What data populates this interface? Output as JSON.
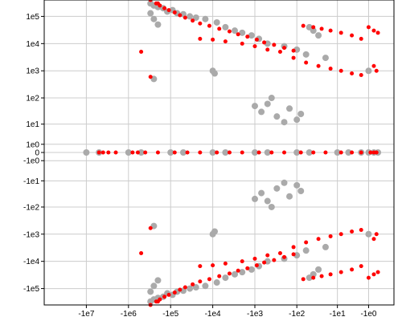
{
  "chart_data": {
    "type": "scatter",
    "title": "",
    "xlabel": "",
    "ylabel": "",
    "grid": true,
    "x_scale": "symlog",
    "y_scale": "symlog",
    "x_ticks": [
      {
        "value": -10000000,
        "label": "-1e7"
      },
      {
        "value": -1000000,
        "label": "-1e6"
      },
      {
        "value": -100000,
        "label": "-1e5"
      },
      {
        "value": -10000,
        "label": "-1e4"
      },
      {
        "value": -1000,
        "label": "-1e3"
      },
      {
        "value": -100,
        "label": "-1e2"
      },
      {
        "value": -10,
        "label": "-1e1"
      },
      {
        "value": -1,
        "label": "-1e0"
      }
    ],
    "y_ticks": [
      {
        "value": 100000,
        "label": "1e5"
      },
      {
        "value": 10000,
        "label": "1e4"
      },
      {
        "value": 1000,
        "label": "1e3"
      },
      {
        "value": 100,
        "label": "1e2"
      },
      {
        "value": 10,
        "label": "1e1"
      },
      {
        "value": 1,
        "label": "1e0"
      },
      {
        "value": 0,
        "label": "0"
      },
      {
        "value": -1,
        "label": "-1e0"
      },
      {
        "value": -10,
        "label": "-1e1"
      },
      {
        "value": -100,
        "label": "-1e2"
      },
      {
        "value": -1000,
        "label": "-1e3"
      },
      {
        "value": -10000,
        "label": "-1e4"
      },
      {
        "value": -100000,
        "label": "-1e5"
      }
    ],
    "xlim": [
      -100000000,
      1
    ],
    "ylim": [
      -400000,
      400000
    ],
    "series": [
      {
        "color": "#aaaaaa",
        "points": [
          [
            -300000,
            300000
          ],
          [
            -250000,
            250000
          ],
          [
            -200000,
            220000
          ],
          [
            -150000,
            200000
          ],
          [
            -120000,
            150000
          ],
          [
            -90000,
            170000
          ],
          [
            -70000,
            130000
          ],
          [
            -50000,
            120000
          ],
          [
            -35000,
            100000
          ],
          [
            -25000,
            90000
          ],
          [
            -15000,
            80000
          ],
          [
            -8000,
            60000
          ],
          [
            -5000,
            40000
          ],
          [
            -3000,
            30000
          ],
          [
            -2000,
            25000
          ],
          [
            -1200,
            20000
          ],
          [
            -800,
            15000
          ],
          [
            -500,
            10000
          ],
          [
            -200,
            8000
          ],
          [
            -100,
            6000
          ],
          [
            -60,
            4000
          ],
          [
            -40,
            30000
          ],
          [
            -30,
            20000
          ],
          [
            -20,
            3000
          ],
          [
            -50,
            40000
          ],
          [
            -300000,
            130000
          ],
          [
            -250000,
            80000
          ],
          [
            -200000,
            50000
          ],
          [
            -10000,
            1000
          ],
          [
            -9000,
            800
          ],
          [
            -250000,
            500
          ],
          [
            -1000,
            50
          ],
          [
            -500,
            60
          ],
          [
            -700,
            30
          ],
          [
            -300,
            20
          ],
          [
            -200,
            12
          ],
          [
            -150,
            40
          ],
          [
            -80,
            25
          ],
          [
            -100,
            15
          ],
          [
            -400,
            100
          ],
          [
            -10000000,
            0
          ],
          [
            -5000000,
            0
          ],
          [
            -1000000,
            0
          ],
          [
            -500000,
            0
          ],
          [
            -100000,
            0
          ],
          [
            -50000,
            0
          ],
          [
            -10000,
            0
          ],
          [
            -5000,
            0
          ],
          [
            -1000,
            0
          ],
          [
            -500,
            0
          ],
          [
            -100,
            0
          ],
          [
            -50,
            0
          ],
          [
            -10,
            0
          ],
          [
            -5,
            0
          ],
          [
            -2,
            0
          ],
          [
            -1,
            0
          ],
          [
            -0.5,
            0
          ],
          [
            -0.2,
            0
          ],
          [
            -300000,
            -300000
          ],
          [
            -250000,
            -250000
          ],
          [
            -200000,
            -220000
          ],
          [
            -150000,
            -200000
          ],
          [
            -120000,
            -150000
          ],
          [
            -90000,
            -170000
          ],
          [
            -70000,
            -130000
          ],
          [
            -50000,
            -120000
          ],
          [
            -35000,
            -100000
          ],
          [
            -25000,
            -90000
          ],
          [
            -15000,
            -80000
          ],
          [
            -8000,
            -60000
          ],
          [
            -5000,
            -40000
          ],
          [
            -3000,
            -30000
          ],
          [
            -2000,
            -25000
          ],
          [
            -1200,
            -20000
          ],
          [
            -800,
            -15000
          ],
          [
            -500,
            -10000
          ],
          [
            -200,
            -8000
          ],
          [
            -100,
            -6000
          ],
          [
            -60,
            -4000
          ],
          [
            -40,
            -30000
          ],
          [
            -30,
            -20000
          ],
          [
            -20,
            -3000
          ],
          [
            -50,
            -40000
          ],
          [
            -300000,
            -130000
          ],
          [
            -250000,
            -80000
          ],
          [
            -200000,
            -50000
          ],
          [
            -10000,
            -1000
          ],
          [
            -9000,
            -800
          ],
          [
            -250000,
            -500
          ],
          [
            -1000,
            -50
          ],
          [
            -500,
            -60
          ],
          [
            -700,
            -30
          ],
          [
            -300,
            -20
          ],
          [
            -200,
            -12
          ],
          [
            -150,
            -40
          ],
          [
            -80,
            -25
          ],
          [
            -100,
            -15
          ],
          [
            -400,
            -100
          ],
          [
            -1,
            -1000
          ],
          [
            -1,
            1000
          ]
        ]
      },
      {
        "color": "#ff0000",
        "points": [
          [
            -300000,
            400000
          ],
          [
            -220000,
            300000
          ],
          [
            -180000,
            250000
          ],
          [
            -140000,
            200000
          ],
          [
            -110000,
            170000
          ],
          [
            -80000,
            140000
          ],
          [
            -60000,
            110000
          ],
          [
            -45000,
            90000
          ],
          [
            -30000,
            70000
          ],
          [
            -20000,
            55000
          ],
          [
            -12000,
            45000
          ],
          [
            -7000,
            35000
          ],
          [
            -4000,
            28000
          ],
          [
            -2500,
            22000
          ],
          [
            -1500,
            18000
          ],
          [
            -900,
            14000
          ],
          [
            -600,
            11000
          ],
          [
            -350,
            9000
          ],
          [
            -200,
            7000
          ],
          [
            -120,
            5500
          ],
          [
            -70,
            45000
          ],
          [
            -40,
            40000
          ],
          [
            -25,
            35000
          ],
          [
            -15,
            30000
          ],
          [
            -8,
            25000
          ],
          [
            -4,
            20000
          ],
          [
            -2,
            15000
          ],
          [
            -1,
            40000
          ],
          [
            -0.5,
            30000
          ],
          [
            -0.2,
            25000
          ],
          [
            -20000,
            15000
          ],
          [
            -10000,
            14000
          ],
          [
            -5000,
            12000
          ],
          [
            -2000,
            10000
          ],
          [
            -1000,
            8000
          ],
          [
            -500,
            6000
          ],
          [
            -250,
            5000
          ],
          [
            -120,
            3000
          ],
          [
            -60,
            2000
          ],
          [
            -30,
            1500
          ],
          [
            -15,
            1200
          ],
          [
            -8,
            1000
          ],
          [
            -4,
            800
          ],
          [
            -2,
            700
          ],
          [
            -0.5,
            1500
          ],
          [
            -0.3,
            1000
          ],
          [
            -500000,
            5000
          ],
          [
            -300000,
            600
          ],
          [
            -200000,
            300000
          ],
          [
            -5000000,
            0
          ],
          [
            -4000000,
            0
          ],
          [
            -3000000,
            0
          ],
          [
            -2000000,
            0
          ],
          [
            -800000,
            0
          ],
          [
            -600000,
            0
          ],
          [
            -400000,
            0
          ],
          [
            -200000,
            0
          ],
          [
            -80000,
            0
          ],
          [
            -40000,
            0
          ],
          [
            -20000,
            0
          ],
          [
            -8000,
            0
          ],
          [
            -4000,
            0
          ],
          [
            -2000,
            0
          ],
          [
            -800,
            0
          ],
          [
            -400,
            0
          ],
          [
            -200,
            0
          ],
          [
            -80,
            0
          ],
          [
            -40,
            0
          ],
          [
            -20,
            0
          ],
          [
            -8,
            0
          ],
          [
            -4,
            0
          ],
          [
            -2,
            0
          ],
          [
            -0.8,
            0
          ],
          [
            -0.5,
            0
          ],
          [
            -0.3,
            0
          ],
          [
            -300000,
            -400000
          ],
          [
            -220000,
            -300000
          ],
          [
            -180000,
            -250000
          ],
          [
            -140000,
            -200000
          ],
          [
            -110000,
            -170000
          ],
          [
            -80000,
            -140000
          ],
          [
            -60000,
            -110000
          ],
          [
            -45000,
            -90000
          ],
          [
            -30000,
            -70000
          ],
          [
            -20000,
            -55000
          ],
          [
            -12000,
            -45000
          ],
          [
            -7000,
            -35000
          ],
          [
            -4000,
            -28000
          ],
          [
            -2500,
            -22000
          ],
          [
            -1500,
            -18000
          ],
          [
            -900,
            -14000
          ],
          [
            -600,
            -11000
          ],
          [
            -350,
            -9000
          ],
          [
            -200,
            -7000
          ],
          [
            -120,
            -5500
          ],
          [
            -70,
            -45000
          ],
          [
            -40,
            -40000
          ],
          [
            -25,
            -35000
          ],
          [
            -15,
            -30000
          ],
          [
            -8,
            -25000
          ],
          [
            -4,
            -20000
          ],
          [
            -2,
            -15000
          ],
          [
            -1,
            -40000
          ],
          [
            -0.5,
            -30000
          ],
          [
            -0.2,
            -25000
          ],
          [
            -20000,
            -15000
          ],
          [
            -10000,
            -14000
          ],
          [
            -5000,
            -12000
          ],
          [
            -2000,
            -10000
          ],
          [
            -1000,
            -8000
          ],
          [
            -500,
            -6000
          ],
          [
            -250,
            -5000
          ],
          [
            -120,
            -3000
          ],
          [
            -60,
            -2000
          ],
          [
            -30,
            -1500
          ],
          [
            -15,
            -1200
          ],
          [
            -8,
            -1000
          ],
          [
            -4,
            -800
          ],
          [
            -2,
            -700
          ],
          [
            -0.5,
            -1500
          ],
          [
            -0.3,
            -1000
          ],
          [
            -500000,
            -5000
          ],
          [
            -300000,
            -600
          ],
          [
            -200000,
            -300000
          ]
        ]
      }
    ]
  }
}
